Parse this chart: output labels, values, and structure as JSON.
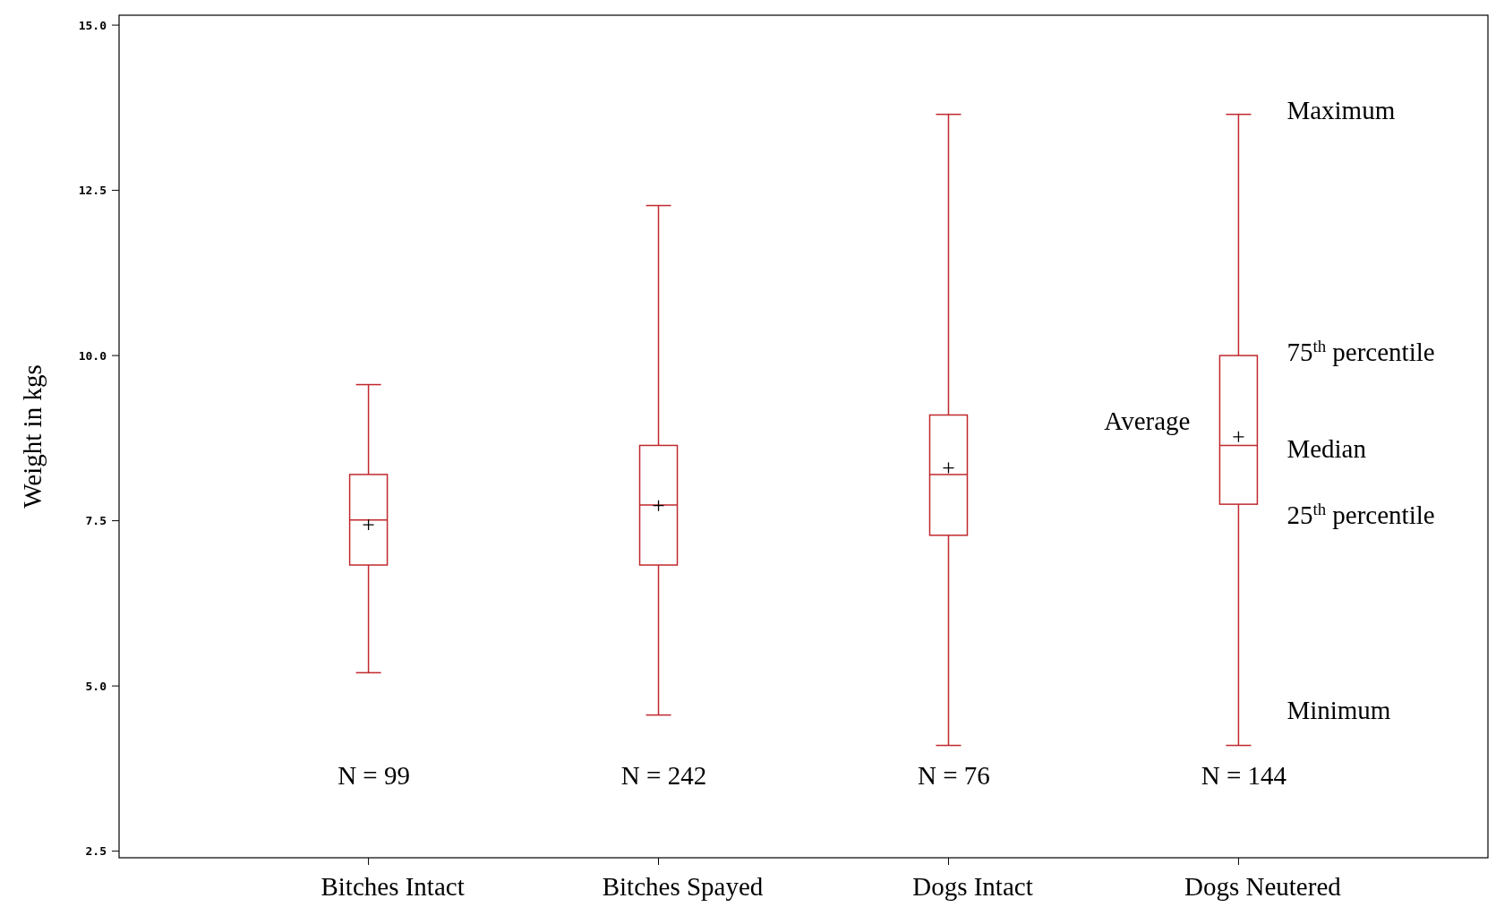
{
  "chart_data": {
    "type": "box",
    "ylabel": "Weight in kgs",
    "categories": [
      "Bitches Intact",
      "Bitches Spayed",
      "Dogs Intact",
      "Dogs Neutered"
    ],
    "color": "#c0282d",
    "marker": "cross",
    "boxes": [
      {
        "low": 5.2,
        "q1": 6.83,
        "median": 7.51,
        "q3": 8.2,
        "high": 9.56,
        "mean": 7.44
      },
      {
        "low": 4.56,
        "q1": 6.83,
        "median": 7.74,
        "q3": 8.64,
        "high": 12.27,
        "mean": 7.73
      },
      {
        "low": 4.1,
        "q1": 7.28,
        "median": 8.2,
        "q3": 9.1,
        "high": 13.65,
        "mean": 8.3
      },
      {
        "low": 4.1,
        "q1": 7.75,
        "median": 8.64,
        "q3": 10.0,
        "high": 13.65,
        "mean": 8.77
      }
    ],
    "ylim": [
      2.4,
      15.15
    ],
    "yticks": [
      {
        "value": 2.5,
        "label": "2.5"
      },
      {
        "value": 5,
        "label": "5.0"
      },
      {
        "value": 7.5,
        "label": "7.5"
      },
      {
        "value": 10,
        "label": "10.0"
      },
      {
        "value": 12.5,
        "label": "12.5"
      },
      {
        "value": 15,
        "label": "15.0"
      }
    ],
    "grid": false,
    "annotations": [
      "N = 99",
      "N = 242",
      "N = 76",
      "N = 144",
      "Maximum",
      "75$^{th}$ percentile",
      "Average",
      "Median",
      "25$^{th}$ percentile",
      "Minimum"
    ]
  }
}
